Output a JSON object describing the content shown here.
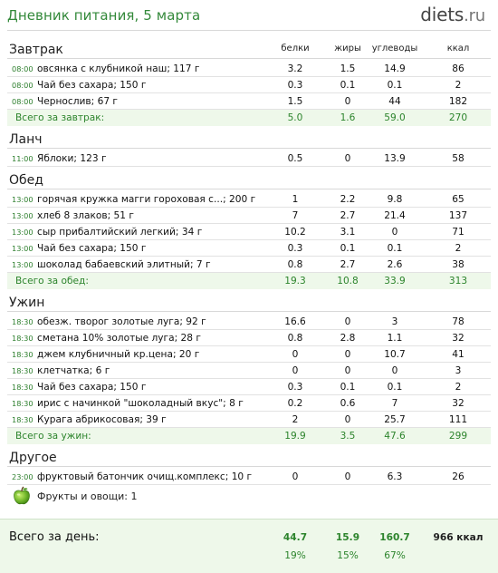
{
  "header": {
    "title": "Дневник питания, 5 марта",
    "logo_main": "diets",
    "logo_domain": ".ru"
  },
  "columns": {
    "protein": "белки",
    "fat": "жиры",
    "carbs": "углеводы",
    "kcal": "ккал"
  },
  "sections": [
    {
      "title": "Завтрак",
      "items": [
        {
          "time": "08:00",
          "name": "овсянка с клубникой наш; 117 г",
          "protein": "3.2",
          "fat": "1.5",
          "carbs": "14.9",
          "kcal": "86"
        },
        {
          "time": "08:00",
          "name": "Чай без сахара; 150 г",
          "protein": "0.3",
          "fat": "0.1",
          "carbs": "0.1",
          "kcal": "2"
        },
        {
          "time": "08:00",
          "name": "Чернослив; 67 г",
          "protein": "1.5",
          "fat": "0",
          "carbs": "44",
          "kcal": "182"
        }
      ],
      "total": {
        "label": "Всего за завтрак:",
        "protein": "5.0",
        "fat": "1.6",
        "carbs": "59.0",
        "kcal": "270"
      }
    },
    {
      "title": "Ланч",
      "items": [
        {
          "time": "11:00",
          "name": "Яблоки; 123 г",
          "protein": "0.5",
          "fat": "0",
          "carbs": "13.9",
          "kcal": "58"
        }
      ]
    },
    {
      "title": "Обед",
      "items": [
        {
          "time": "13:00",
          "name": "горячая кружка магги гороховая с...; 200 г",
          "protein": "1",
          "fat": "2.2",
          "carbs": "9.8",
          "kcal": "65"
        },
        {
          "time": "13:00",
          "name": "хлеб 8 злаков; 51 г",
          "protein": "7",
          "fat": "2.7",
          "carbs": "21.4",
          "kcal": "137"
        },
        {
          "time": "13:00",
          "name": "сыр прибалтийский легкий; 34 г",
          "protein": "10.2",
          "fat": "3.1",
          "carbs": "0",
          "kcal": "71"
        },
        {
          "time": "13:00",
          "name": "Чай без сахара; 150 г",
          "protein": "0.3",
          "fat": "0.1",
          "carbs": "0.1",
          "kcal": "2"
        },
        {
          "time": "13:00",
          "name": "шоколад бабаевский элитный; 7 г",
          "protein": "0.8",
          "fat": "2.7",
          "carbs": "2.6",
          "kcal": "38"
        }
      ],
      "total": {
        "label": "Всего за обед:",
        "protein": "19.3",
        "fat": "10.8",
        "carbs": "33.9",
        "kcal": "313"
      }
    },
    {
      "title": "Ужин",
      "items": [
        {
          "time": "18:30",
          "name": "обезж. творог золотые луга; 92 г",
          "protein": "16.6",
          "fat": "0",
          "carbs": "3",
          "kcal": "78"
        },
        {
          "time": "18:30",
          "name": "сметана 10% золотые луга; 28 г",
          "protein": "0.8",
          "fat": "2.8",
          "carbs": "1.1",
          "kcal": "32"
        },
        {
          "time": "18:30",
          "name": "джем клубничный кр.цена; 20 г",
          "protein": "0",
          "fat": "0",
          "carbs": "10.7",
          "kcal": "41"
        },
        {
          "time": "18:30",
          "name": "клетчатка; 6 г",
          "protein": "0",
          "fat": "0",
          "carbs": "0",
          "kcal": "3"
        },
        {
          "time": "18:30",
          "name": "Чай без сахара; 150 г",
          "protein": "0.3",
          "fat": "0.1",
          "carbs": "0.1",
          "kcal": "2"
        },
        {
          "time": "18:30",
          "name": "ирис с начинкой \"шоколадный вкус\"; 8 г",
          "protein": "0.2",
          "fat": "0.6",
          "carbs": "7",
          "kcal": "32"
        },
        {
          "time": "18:30",
          "name": "Курага абрикосовая; 39 г",
          "protein": "2",
          "fat": "0",
          "carbs": "25.7",
          "kcal": "111"
        }
      ],
      "total": {
        "label": "Всего за ужин:",
        "protein": "19.9",
        "fat": "3.5",
        "carbs": "47.6",
        "kcal": "299"
      }
    },
    {
      "title": "Другое",
      "items": [
        {
          "time": "23:00",
          "name": "фруктовый батончик очищ.комплекс; 10 г",
          "protein": "0",
          "fat": "0",
          "carbs": "6.3",
          "kcal": "26"
        }
      ]
    }
  ],
  "fruits": {
    "label": "Фрукты и овощи: 1",
    "icon": "apple-icon"
  },
  "day_total": {
    "label": "Всего за день:",
    "protein": "44.7",
    "fat": "15.9",
    "carbs": "160.7",
    "kcal": "966 ккал",
    "protein_pct": "19%",
    "fat_pct": "15%",
    "carbs_pct": "67%"
  },
  "colors": {
    "accent": "#33893a",
    "total_bg": "#eef8ea"
  }
}
